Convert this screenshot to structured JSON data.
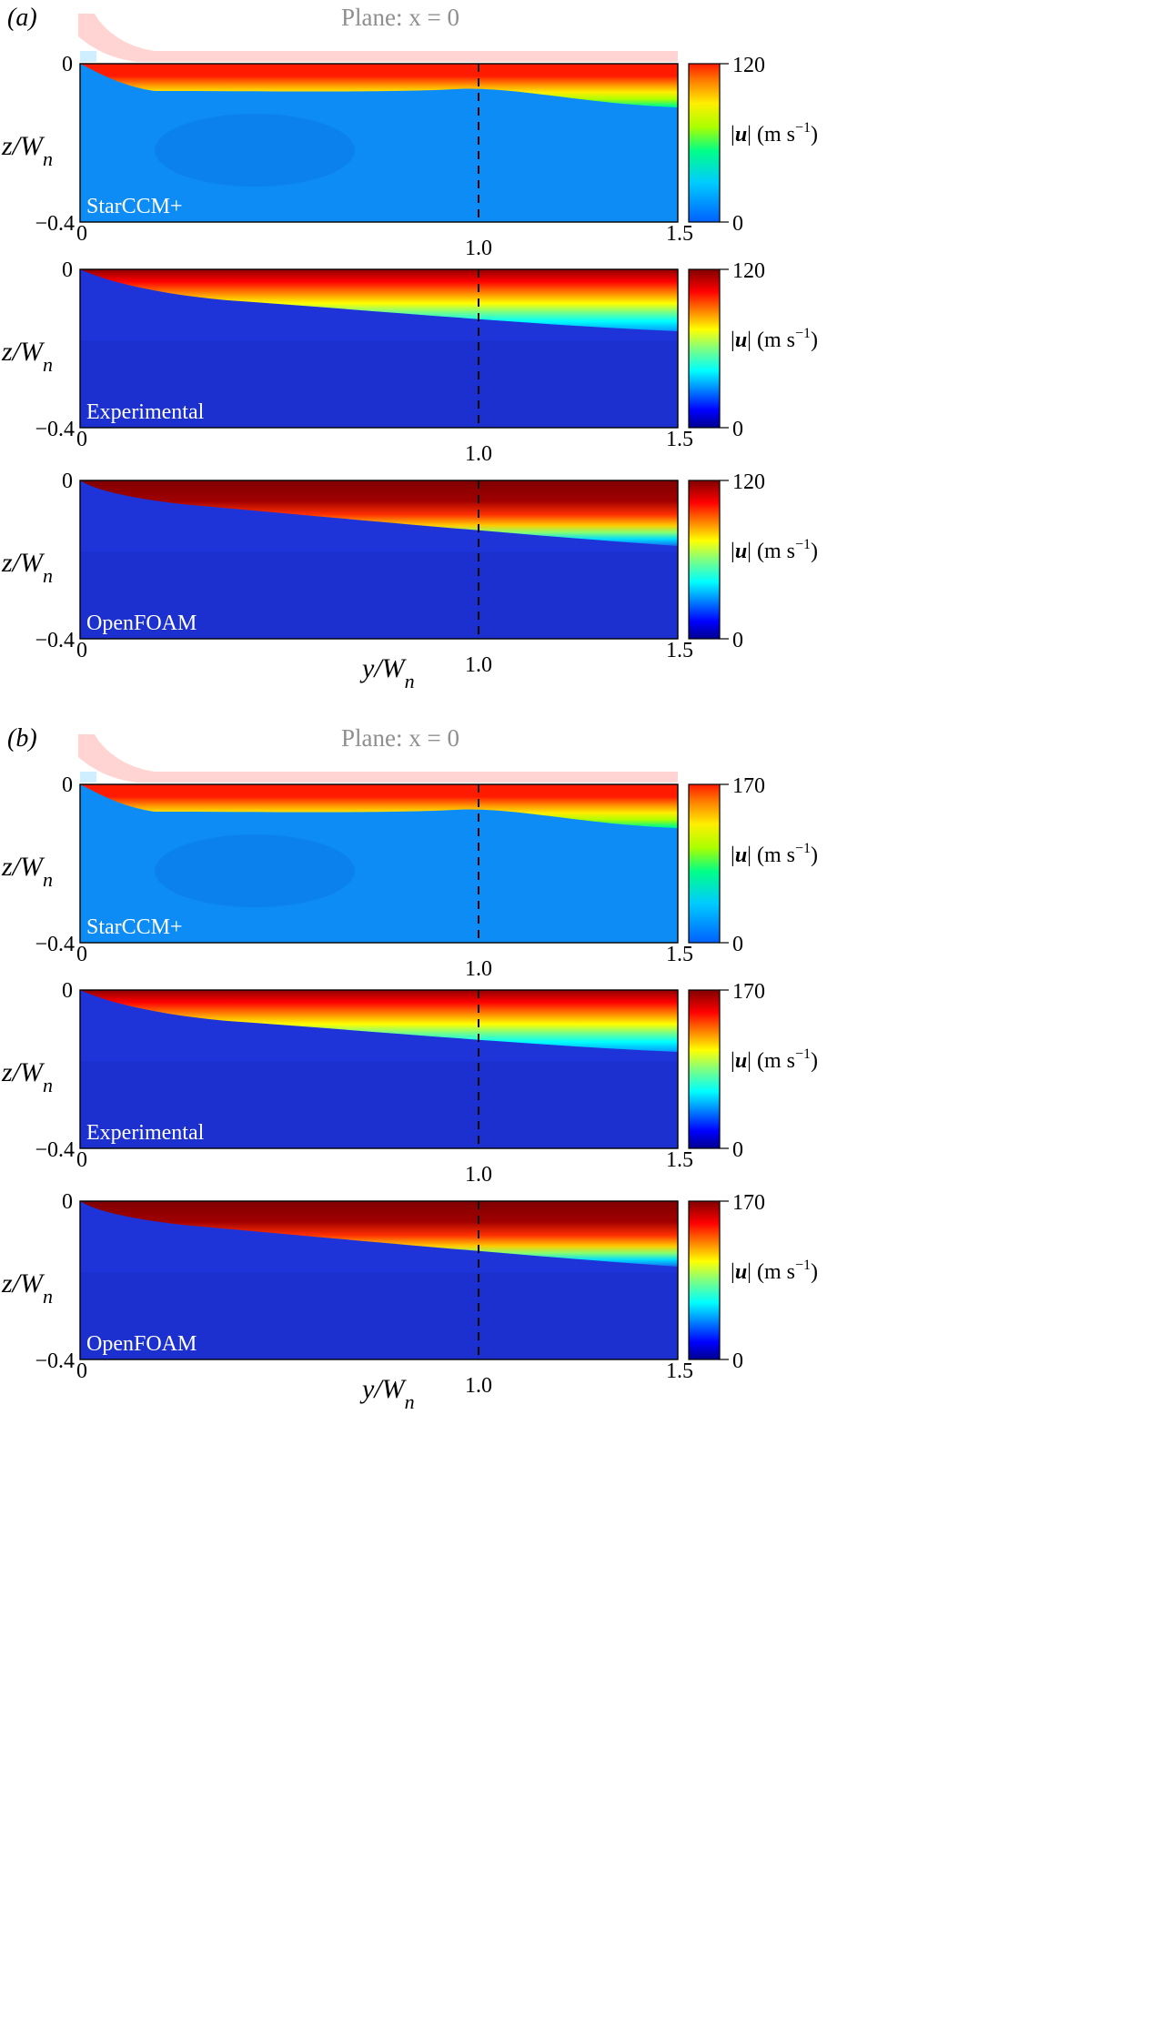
{
  "figure": {
    "panels": [
      {
        "label": "(a)",
        "plane_title": "Plane: x = 0",
        "colormap": "jet",
        "colorbar_max": "120",
        "colorbar_min": "0",
        "colorbar_label": "|u| (m s⁻¹)",
        "x_label": "y/Wn",
        "z_label": "z/Wn",
        "y_ticks": [
          "0",
          "−0.4"
        ],
        "x_ticks": [
          "0",
          "1.0",
          "1.5"
        ],
        "reference_line_x": 1.0,
        "subplots": [
          {
            "name": "StarCCM+",
            "palette": "coarse",
            "nozzle_outline": true
          },
          {
            "name": "Experimental",
            "palette": "jet",
            "nozzle_outline": false
          },
          {
            "name": "OpenFOAM",
            "palette": "jet",
            "nozzle_outline": false
          }
        ]
      },
      {
        "label": "(b)",
        "plane_title": "Plane: x = 0",
        "colormap": "jet",
        "colorbar_max": "170",
        "colorbar_min": "0",
        "colorbar_label": "|u| (m s⁻¹)",
        "x_label": "y/Wn",
        "z_label": "z/Wn",
        "y_ticks": [
          "0",
          "−0.4"
        ],
        "x_ticks": [
          "0",
          "1.0",
          "1.5"
        ],
        "reference_line_x": 1.0,
        "subplots": [
          {
            "name": "StarCCM+",
            "palette": "coarse",
            "nozzle_outline": true
          },
          {
            "name": "Experimental",
            "palette": "jet",
            "nozzle_outline": false
          },
          {
            "name": "OpenFOAM",
            "palette": "jet",
            "nozzle_outline": false
          }
        ]
      }
    ]
  },
  "chart_data": [
    {
      "type": "heatmap",
      "title": "Plane: x = 0",
      "panel": "(a)",
      "xlabel": "y/Wn",
      "ylabel": "z/Wn",
      "xlim": [
        0,
        1.5
      ],
      "ylim": [
        -0.4,
        0
      ],
      "colorbar": {
        "label": "|u| (m s⁻¹)",
        "range": [
          0,
          120
        ]
      },
      "series": [
        {
          "name": "StarCCM+"
        },
        {
          "name": "Experimental"
        },
        {
          "name": "OpenFOAM"
        }
      ]
    },
    {
      "type": "heatmap",
      "title": "Plane: x = 0",
      "panel": "(b)",
      "xlabel": "y/Wn",
      "ylabel": "z/Wn",
      "xlim": [
        0,
        1.5
      ],
      "ylim": [
        -0.4,
        0
      ],
      "colorbar": {
        "label": "|u| (m s⁻¹)",
        "range": [
          0,
          170
        ]
      },
      "series": [
        {
          "name": "StarCCM+"
        },
        {
          "name": "Experimental"
        },
        {
          "name": "OpenFOAM"
        }
      ]
    }
  ]
}
